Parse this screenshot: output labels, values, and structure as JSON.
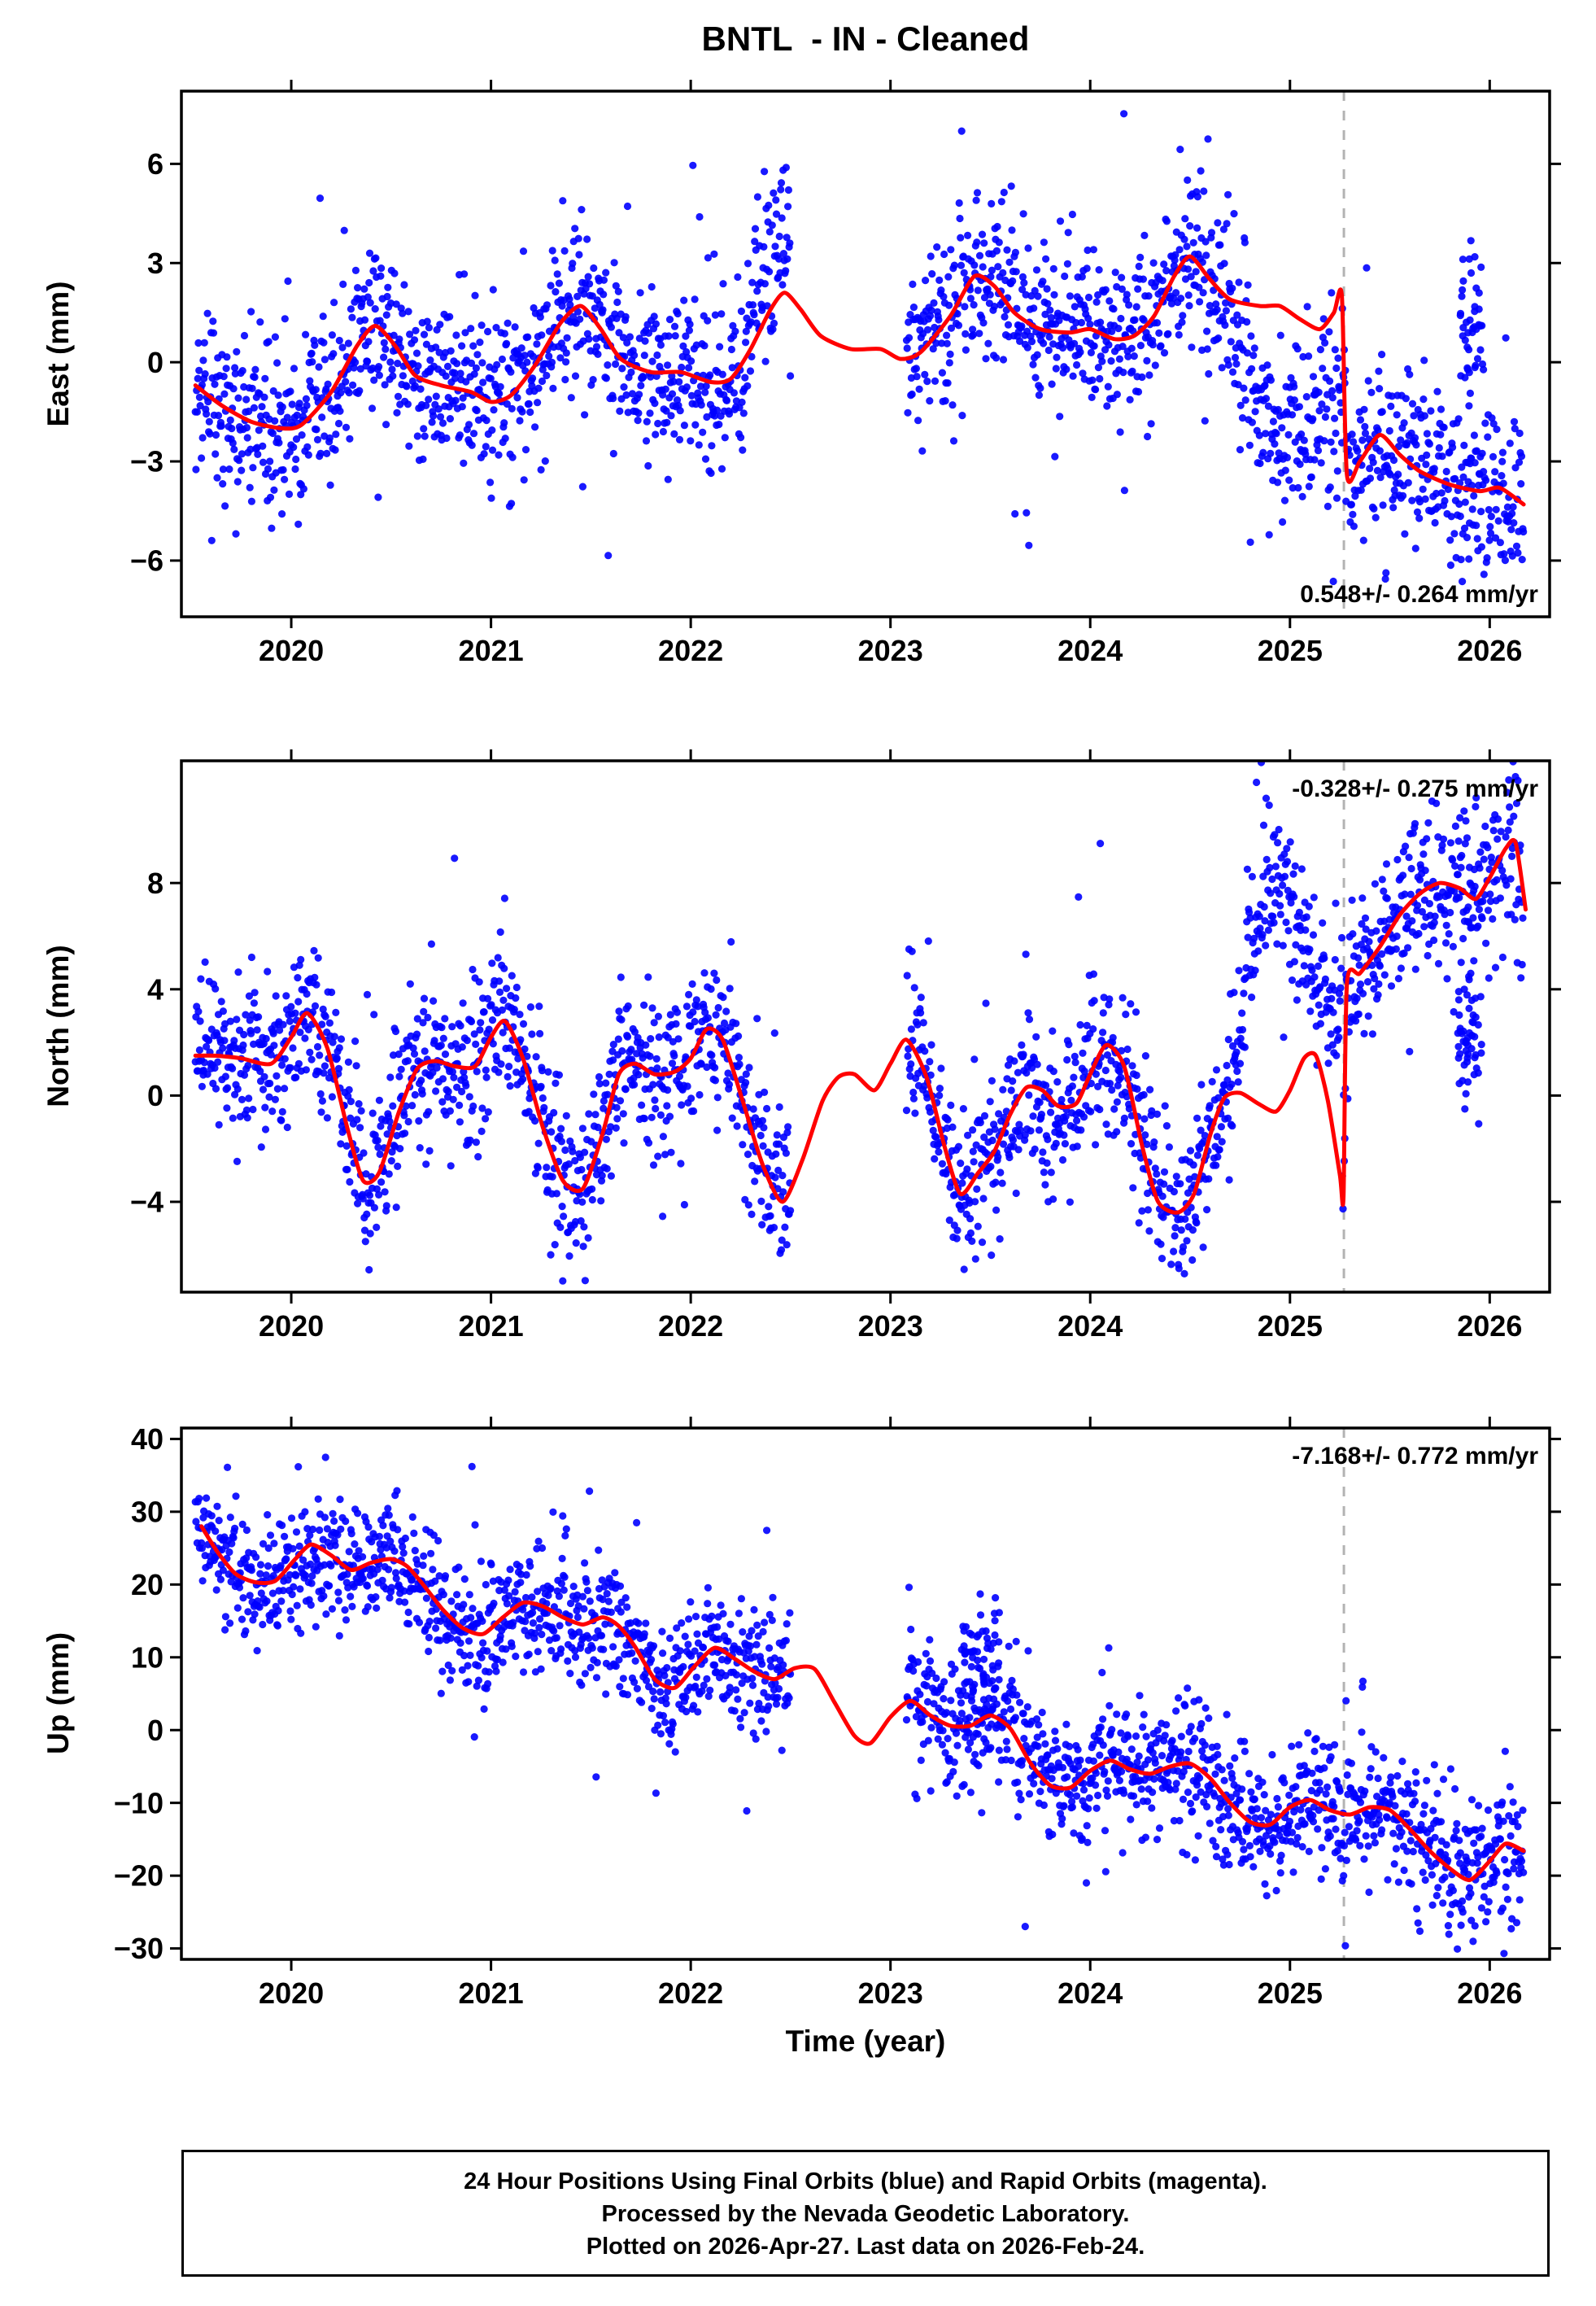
{
  "title": "BNTL  - IN - Cleaned",
  "xlabel": "Time (year)",
  "caption": {
    "line1": "24 Hour Positions Using Final Orbits (blue) and Rapid Orbits (magenta).",
    "line2": "Processed by the Nevada Geodetic Laboratory.",
    "line3": "Plotted on 2026-Apr-27. Last data on 2026-Feb-24."
  },
  "colors": {
    "points": "#0000ff",
    "trend": "#ff0000",
    "event_line": "#b3b3b3",
    "frame": "#000000"
  },
  "chart_data": {
    "type": "scatter",
    "x_range": [
      2019.45,
      2026.3
    ],
    "x_ticks": [
      2020,
      2021,
      2022,
      2023,
      2024,
      2025,
      2026
    ],
    "event_line_x": 2025.27,
    "data_span": [
      2019.52,
      2026.17
    ],
    "gaps": [
      [
        2022.5,
        2023.08
      ]
    ],
    "seed": 20260427,
    "points_per_year": 330,
    "panels": [
      {
        "id": "east",
        "ylabel": "East (mm)",
        "y_range": [
          -7.7,
          8.2
        ],
        "y_ticks": [
          -6,
          -3,
          0,
          3,
          6
        ],
        "rate_label": "0.548+/- 0.264 mm/yr",
        "rate_label_corner": "bottom-right",
        "noise_sigma": 1.25,
        "trend_curve": [
          [
            2019.52,
            -0.7
          ],
          [
            2019.65,
            -1.3
          ],
          [
            2019.8,
            -1.8
          ],
          [
            2019.95,
            -2.0
          ],
          [
            2020.05,
            -1.9
          ],
          [
            2020.2,
            -0.9
          ],
          [
            2020.33,
            0.5
          ],
          [
            2020.42,
            1.1
          ],
          [
            2020.52,
            0.5
          ],
          [
            2020.62,
            -0.4
          ],
          [
            2020.75,
            -0.7
          ],
          [
            2020.9,
            -0.9
          ],
          [
            2021.0,
            -1.2
          ],
          [
            2021.1,
            -1.0
          ],
          [
            2021.22,
            -0.1
          ],
          [
            2021.35,
            1.2
          ],
          [
            2021.45,
            1.7
          ],
          [
            2021.55,
            1.0
          ],
          [
            2021.65,
            0.1
          ],
          [
            2021.8,
            -0.3
          ],
          [
            2021.95,
            -0.3
          ],
          [
            2022.1,
            -0.6
          ],
          [
            2022.2,
            -0.5
          ],
          [
            2022.3,
            0.4
          ],
          [
            2022.4,
            1.6
          ],
          [
            2022.47,
            2.1
          ],
          [
            2022.55,
            1.6
          ],
          [
            2022.65,
            0.8
          ],
          [
            2022.8,
            0.4
          ],
          [
            2022.95,
            0.4
          ],
          [
            2023.05,
            0.1
          ],
          [
            2023.15,
            0.3
          ],
          [
            2023.3,
            1.4
          ],
          [
            2023.42,
            2.6
          ],
          [
            2023.52,
            2.3
          ],
          [
            2023.62,
            1.5
          ],
          [
            2023.75,
            1.0
          ],
          [
            2023.9,
            0.9
          ],
          [
            2024.0,
            1.0
          ],
          [
            2024.12,
            0.7
          ],
          [
            2024.22,
            0.8
          ],
          [
            2024.32,
            1.4
          ],
          [
            2024.42,
            2.6
          ],
          [
            2024.5,
            3.2
          ],
          [
            2024.6,
            2.5
          ],
          [
            2024.7,
            1.9
          ],
          [
            2024.85,
            1.7
          ],
          [
            2024.95,
            1.7
          ],
          [
            2025.05,
            1.3
          ],
          [
            2025.15,
            1.0
          ],
          [
            2025.22,
            1.5
          ],
          [
            2025.26,
            2.0
          ],
          [
            2025.285,
            -3.4
          ],
          [
            2025.35,
            -3.0
          ],
          [
            2025.45,
            -2.2
          ],
          [
            2025.55,
            -2.8
          ],
          [
            2025.65,
            -3.3
          ],
          [
            2025.8,
            -3.7
          ],
          [
            2025.95,
            -3.9
          ],
          [
            2026.05,
            -3.8
          ],
          [
            2026.17,
            -4.3
          ]
        ],
        "scatter_overrides": [
          [
            [
              2022.28,
              0.8
            ],
            [
              2022.36,
              2.2
            ],
            [
              2022.44,
              3.3
            ],
            [
              2022.5,
              3.8
            ]
          ],
          [
            [
              2024.72,
              0.8
            ],
            [
              2024.8,
              -0.6
            ],
            [
              2024.9,
              -1.9
            ],
            [
              2025.0,
              -2.2
            ],
            [
              2025.08,
              -1.8
            ],
            [
              2025.16,
              -1.2
            ],
            [
              2025.26,
              -1.8
            ]
          ]
        ],
        "extra_clusters": [
          {
            "t0": 2025.85,
            "t1": 2025.97,
            "mean": 1.2,
            "sigma": 1.2,
            "n": 45
          }
        ]
      },
      {
        "id": "north",
        "ylabel": "North (mm)",
        "y_range": [
          -7.4,
          12.6
        ],
        "y_ticks": [
          -4,
          0,
          4,
          8
        ],
        "rate_label": "-0.328+/- 0.275 mm/yr",
        "rate_label_corner": "top-right",
        "noise_sigma": 1.4,
        "trend_curve": [
          [
            2019.52,
            1.5
          ],
          [
            2019.62,
            1.5
          ],
          [
            2019.75,
            1.4
          ],
          [
            2019.9,
            1.2
          ],
          [
            2020.0,
            2.2
          ],
          [
            2020.08,
            3.1
          ],
          [
            2020.18,
            1.8
          ],
          [
            2020.28,
            -1.2
          ],
          [
            2020.36,
            -3.2
          ],
          [
            2020.44,
            -2.9
          ],
          [
            2020.54,
            -0.6
          ],
          [
            2020.63,
            1.0
          ],
          [
            2020.72,
            1.3
          ],
          [
            2020.82,
            1.1
          ],
          [
            2020.92,
            1.1
          ],
          [
            2021.0,
            2.2
          ],
          [
            2021.07,
            2.8
          ],
          [
            2021.16,
            1.4
          ],
          [
            2021.26,
            -1.2
          ],
          [
            2021.36,
            -3.2
          ],
          [
            2021.46,
            -3.5
          ],
          [
            2021.56,
            -1.4
          ],
          [
            2021.64,
            0.8
          ],
          [
            2021.72,
            1.2
          ],
          [
            2021.82,
            0.8
          ],
          [
            2021.92,
            0.9
          ],
          [
            2022.0,
            1.4
          ],
          [
            2022.08,
            2.5
          ],
          [
            2022.16,
            2.1
          ],
          [
            2022.26,
            -0.2
          ],
          [
            2022.36,
            -2.6
          ],
          [
            2022.46,
            -4.0
          ],
          [
            2022.56,
            -2.4
          ],
          [
            2022.66,
            -0.2
          ],
          [
            2022.74,
            0.7
          ],
          [
            2022.82,
            0.8
          ],
          [
            2022.92,
            0.2
          ],
          [
            2023.0,
            1.2
          ],
          [
            2023.08,
            2.1
          ],
          [
            2023.18,
            0.7
          ],
          [
            2023.27,
            -1.9
          ],
          [
            2023.35,
            -3.7
          ],
          [
            2023.44,
            -2.9
          ],
          [
            2023.52,
            -2.1
          ],
          [
            2023.6,
            -0.7
          ],
          [
            2023.68,
            0.3
          ],
          [
            2023.76,
            0.2
          ],
          [
            2023.84,
            -0.4
          ],
          [
            2023.93,
            -0.3
          ],
          [
            2024.0,
            0.8
          ],
          [
            2024.08,
            1.9
          ],
          [
            2024.17,
            1.1
          ],
          [
            2024.26,
            -1.9
          ],
          [
            2024.34,
            -4.0
          ],
          [
            2024.44,
            -4.4
          ],
          [
            2024.52,
            -3.7
          ],
          [
            2024.6,
            -1.5
          ],
          [
            2024.67,
            -0.1
          ],
          [
            2024.75,
            0.1
          ],
          [
            2024.84,
            -0.3
          ],
          [
            2024.93,
            -0.6
          ],
          [
            2025.0,
            0.2
          ],
          [
            2025.07,
            1.4
          ],
          [
            2025.13,
            1.5
          ],
          [
            2025.19,
            -0.2
          ],
          [
            2025.25,
            -3.0
          ],
          [
            2025.268,
            -3.8
          ],
          [
            2025.285,
            4.2
          ],
          [
            2025.35,
            4.6
          ],
          [
            2025.45,
            5.6
          ],
          [
            2025.55,
            6.8
          ],
          [
            2025.65,
            7.6
          ],
          [
            2025.75,
            8.0
          ],
          [
            2025.85,
            7.8
          ],
          [
            2025.93,
            7.4
          ],
          [
            2026.0,
            8.2
          ],
          [
            2026.08,
            9.3
          ],
          [
            2026.13,
            9.5
          ],
          [
            2026.18,
            7.0
          ]
        ],
        "scatter_overrides": [
          [
            [
              2024.7,
              0.5
            ],
            [
              2024.78,
              4.5
            ],
            [
              2024.86,
              7.0
            ],
            [
              2024.94,
              8.2
            ],
            [
              2025.02,
              7.2
            ],
            [
              2025.1,
              5.2
            ],
            [
              2025.18,
              3.2
            ],
            [
              2025.26,
              3.6
            ]
          ]
        ],
        "extra_clusters": [
          {
            "t0": 2025.84,
            "t1": 2025.96,
            "mean": 2.5,
            "sigma": 1.3,
            "n": 55
          }
        ]
      },
      {
        "id": "up",
        "ylabel": "Up (mm)",
        "y_range": [
          -31.5,
          41.5
        ],
        "y_ticks": [
          -30,
          -20,
          -10,
          0,
          10,
          20,
          30,
          40
        ],
        "rate_label": "-7.168+/- 0.772 mm/yr",
        "rate_label_corner": "top-right",
        "noise_sigma": 4.3,
        "trend_curve": [
          [
            2019.55,
            28
          ],
          [
            2019.63,
            24.5
          ],
          [
            2019.72,
            21.5
          ],
          [
            2019.82,
            20.3
          ],
          [
            2019.92,
            20.5
          ],
          [
            2020.02,
            23.5
          ],
          [
            2020.1,
            25.5
          ],
          [
            2020.2,
            24
          ],
          [
            2020.3,
            22
          ],
          [
            2020.4,
            23
          ],
          [
            2020.5,
            23.5
          ],
          [
            2020.58,
            22.5
          ],
          [
            2020.66,
            20
          ],
          [
            2020.76,
            16.5
          ],
          [
            2020.86,
            14
          ],
          [
            2020.96,
            13.2
          ],
          [
            2021.06,
            15.5
          ],
          [
            2021.16,
            17.5
          ],
          [
            2021.26,
            17
          ],
          [
            2021.36,
            15.5
          ],
          [
            2021.46,
            14.5
          ],
          [
            2021.56,
            15.5
          ],
          [
            2021.64,
            14.3
          ],
          [
            2021.72,
            11.5
          ],
          [
            2021.82,
            7
          ],
          [
            2021.92,
            5.8
          ],
          [
            2022.02,
            8.8
          ],
          [
            2022.12,
            11.3
          ],
          [
            2022.22,
            9.8
          ],
          [
            2022.32,
            8
          ],
          [
            2022.42,
            7
          ],
          [
            2022.52,
            8.5
          ],
          [
            2022.62,
            8.4
          ],
          [
            2022.72,
            3.8
          ],
          [
            2022.82,
            -0.8
          ],
          [
            2022.9,
            -1.8
          ],
          [
            2023.0,
            1.8
          ],
          [
            2023.1,
            4
          ],
          [
            2023.2,
            2
          ],
          [
            2023.3,
            0.6
          ],
          [
            2023.4,
            0.6
          ],
          [
            2023.5,
            2
          ],
          [
            2023.6,
            0.2
          ],
          [
            2023.7,
            -4.5
          ],
          [
            2023.8,
            -7.6
          ],
          [
            2023.9,
            -7.9
          ],
          [
            2024.0,
            -5.6
          ],
          [
            2024.1,
            -4.2
          ],
          [
            2024.2,
            -5.4
          ],
          [
            2024.3,
            -6
          ],
          [
            2024.4,
            -5
          ],
          [
            2024.5,
            -4.6
          ],
          [
            2024.6,
            -6.6
          ],
          [
            2024.7,
            -10
          ],
          [
            2024.8,
            -12.6
          ],
          [
            2024.9,
            -13
          ],
          [
            2025.0,
            -10.6
          ],
          [
            2025.1,
            -9.6
          ],
          [
            2025.2,
            -11
          ],
          [
            2025.3,
            -11.6
          ],
          [
            2025.4,
            -10.6
          ],
          [
            2025.5,
            -11
          ],
          [
            2025.6,
            -13.6
          ],
          [
            2025.7,
            -16.6
          ],
          [
            2025.8,
            -19
          ],
          [
            2025.9,
            -20.6
          ],
          [
            2026.0,
            -18
          ],
          [
            2026.08,
            -15.6
          ],
          [
            2026.17,
            -16.6
          ]
        ],
        "scatter_overrides": [],
        "extra_clusters": [
          {
            "t0": 2023.35,
            "t1": 2023.55,
            "mean": 9,
            "sigma": 4,
            "n": 60
          }
        ]
      }
    ]
  }
}
